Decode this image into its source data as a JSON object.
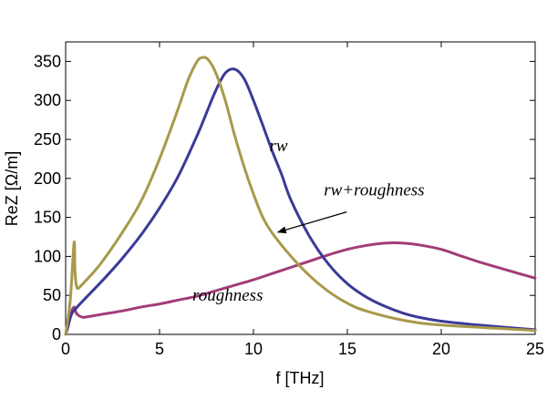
{
  "chart_data": {
    "type": "line",
    "title": "",
    "xlabel": "f [THz]",
    "ylabel": "ReZ [Ω/m]",
    "xlim": [
      0,
      25
    ],
    "ylim": [
      0,
      375
    ],
    "xticks": [
      0,
      5,
      10,
      15,
      20,
      25
    ],
    "yticks": [
      0,
      50,
      100,
      150,
      200,
      250,
      300,
      350
    ],
    "grid": false,
    "legend": "none",
    "series": [
      {
        "name": "rw",
        "color": "#3c3a97",
        "x": [
          0,
          0.3,
          0.5,
          1,
          2,
          3,
          4,
          5,
          6,
          7,
          7.5,
          8,
          8.5,
          9,
          9.5,
          10,
          10.5,
          11,
          11.5,
          12,
          13,
          14,
          15,
          16,
          17,
          18,
          19,
          20,
          22,
          25
        ],
        "y": [
          0,
          25,
          32,
          45,
          70,
          97,
          127,
          162,
          203,
          255,
          284,
          313,
          335,
          340,
          328,
          300,
          268,
          235,
          205,
          172,
          125,
          90,
          65,
          48,
          36,
          27,
          21,
          17,
          12,
          6
        ]
      },
      {
        "name": "rw+roughness",
        "color": "#a8994a",
        "x": [
          0,
          0.25,
          0.45,
          0.5,
          0.6,
          0.8,
          1,
          1.5,
          2,
          3,
          4,
          5,
          6,
          6.5,
          7,
          7.3,
          7.6,
          8,
          8.5,
          9,
          9.5,
          10,
          10.5,
          11,
          12,
          13,
          14,
          15,
          16,
          18,
          20,
          25
        ],
        "y": [
          0,
          45,
          118,
          80,
          60,
          62,
          67,
          80,
          95,
          130,
          170,
          225,
          290,
          325,
          350,
          355,
          352,
          335,
          300,
          255,
          215,
          180,
          150,
          130,
          100,
          75,
          55,
          40,
          30,
          18,
          12,
          5
        ]
      },
      {
        "name": "roughness",
        "color": "#a23c78",
        "x": [
          0,
          0.15,
          0.3,
          0.45,
          0.55,
          0.7,
          0.9,
          1,
          1.5,
          2,
          3,
          4,
          5,
          6,
          7,
          8,
          9,
          10,
          11,
          12,
          13,
          14,
          15,
          16,
          17,
          18,
          19,
          20,
          21,
          22,
          23,
          24,
          25
        ],
        "y": [
          0,
          12,
          28,
          35,
          28,
          24,
          22,
          22,
          24,
          26,
          30,
          35,
          39,
          44,
          49,
          56,
          63,
          70,
          78,
          86,
          94,
          102,
          109,
          114,
          117,
          117,
          114,
          109,
          101,
          93,
          86,
          79,
          72
        ]
      }
    ],
    "annotations": [
      {
        "text": "rw",
        "x": 10.85,
        "y": 235
      },
      {
        "text": "rw+roughness",
        "x": 13.75,
        "y": 178,
        "arrow_to": [
          11.3,
          131
        ]
      },
      {
        "text": "roughness",
        "x": 6.75,
        "y": 43
      }
    ]
  }
}
